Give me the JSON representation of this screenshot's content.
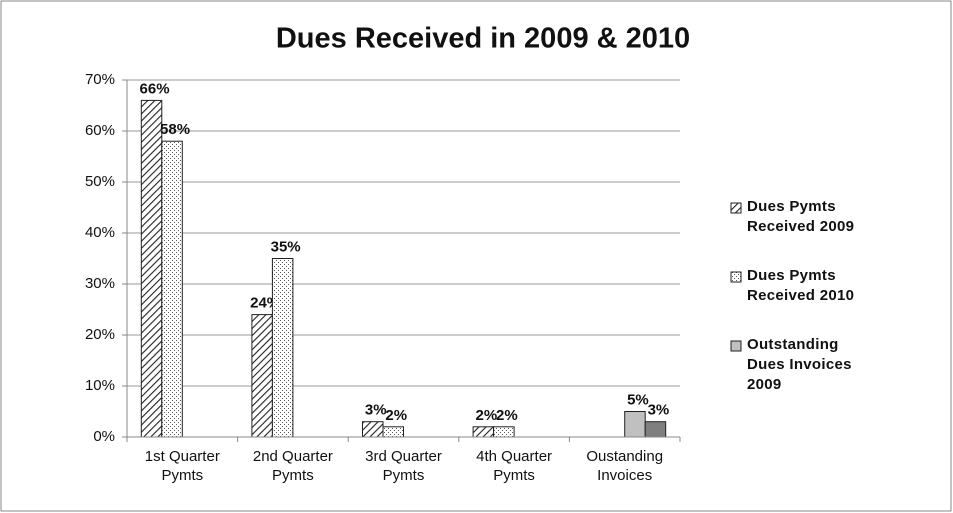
{
  "chart_data": {
    "type": "bar",
    "title": "Dues Received in 2009 & 2010",
    "categories": [
      "1st Quarter Pymts",
      "2nd Quarter Pymts",
      "3rd Quarter Pymts",
      "4th Quarter Pymts",
      "Oustanding Invoices"
    ],
    "series": [
      {
        "name": "Dues Pymts Received 2009",
        "pattern": "diagonal",
        "values": [
          66,
          24,
          3,
          2,
          null
        ],
        "value_labels": [
          "66%",
          "24%",
          "3%",
          "2%",
          null
        ]
      },
      {
        "name": "Dues Pymts Received 2010",
        "pattern": "dotted",
        "values": [
          58,
          35,
          2,
          2,
          null
        ],
        "value_labels": [
          "58%",
          "35%",
          "2%",
          "2%",
          null
        ]
      },
      {
        "name": "Outstanding Dues Invoices 2009",
        "color": "#c0c0c0",
        "values": [
          null,
          null,
          null,
          null,
          5
        ],
        "value_labels": [
          null,
          null,
          null,
          null,
          "5%"
        ]
      },
      {
        "color": "#7f7f7f",
        "values": [
          null,
          null,
          null,
          null,
          3
        ],
        "value_labels": [
          null,
          null,
          null,
          null,
          "3%"
        ]
      }
    ],
    "ylim": [
      0,
      70
    ],
    "yticks": [
      {
        "value": 0,
        "label": "0%"
      },
      {
        "value": 10,
        "label": "10%"
      },
      {
        "value": 20,
        "label": "20%"
      },
      {
        "value": 30,
        "label": "30%"
      },
      {
        "value": 40,
        "label": "40%"
      },
      {
        "value": 50,
        "label": "50%"
      },
      {
        "value": 60,
        "label": "60%"
      },
      {
        "value": 70,
        "label": "70%"
      }
    ],
    "grid": true,
    "legend": "right"
  }
}
